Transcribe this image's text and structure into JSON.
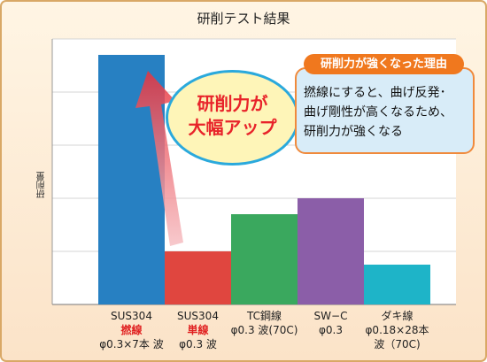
{
  "chart_data": {
    "type": "bar",
    "title": "研削テスト結果",
    "ylabel": "研削量",
    "ylim": [
      0,
      5
    ],
    "grid": true,
    "values": [
      4.7,
      1.0,
      1.7,
      2.0,
      0.75
    ],
    "colors": [
      "#2780c2",
      "#e0463f",
      "#3aa85e",
      "#8b5ea8",
      "#1eb4c8"
    ],
    "categories": [
      {
        "line1": "SUS304",
        "line2": "撚線",
        "line3": "φ0.3×7本 波",
        "highlight": true
      },
      {
        "line1": "SUS304",
        "line2": "単線",
        "line3": "φ0.3 波",
        "highlight": true
      },
      {
        "line1": "TC鋼線",
        "line2": "φ0.3 波(70C)",
        "line3": "",
        "highlight": false
      },
      {
        "line1": "SW−C",
        "line2": "φ0.3",
        "line3": "",
        "highlight": false
      },
      {
        "line1": "ダキ線",
        "line2": "φ0.18×28本",
        "line3": "波（70C)",
        "highlight": false
      }
    ],
    "annotations": {
      "bubble_line1": "研削力が",
      "bubble_line2": "大幅アップ",
      "reason_title": "研削力が強くなった理由",
      "reason_lines": [
        "撚線にすると、曲げ反発･",
        "曲げ剛性が高くなるため、",
        "研削力が強くなる"
      ]
    }
  }
}
